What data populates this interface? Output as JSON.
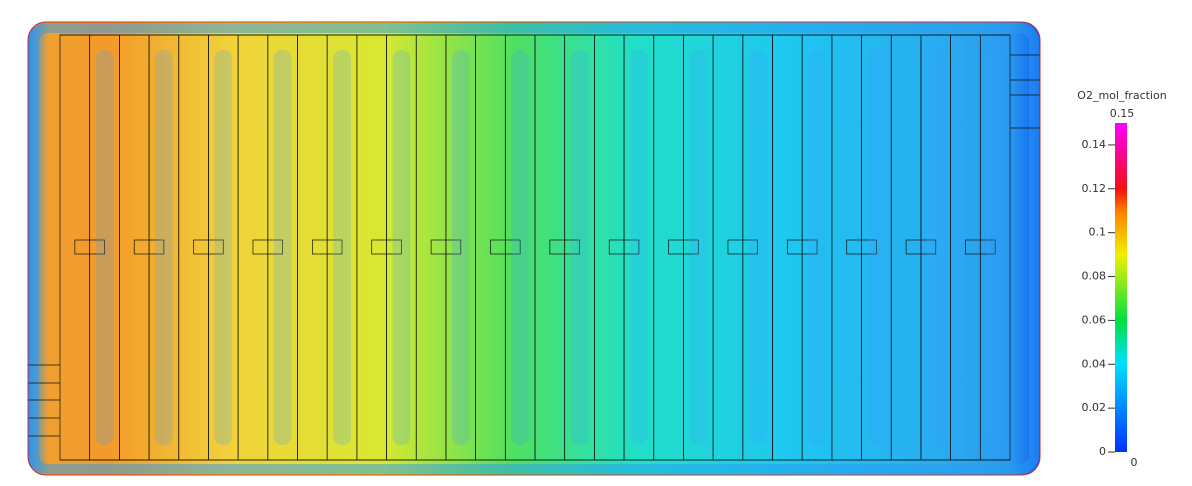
{
  "colorbar": {
    "title": "O2_mol_fraction",
    "min": 0,
    "max": 0.15,
    "ticks": [
      0,
      0.02,
      0.04,
      0.06,
      0.08,
      0.1,
      0.12,
      0.14
    ]
  }
}
